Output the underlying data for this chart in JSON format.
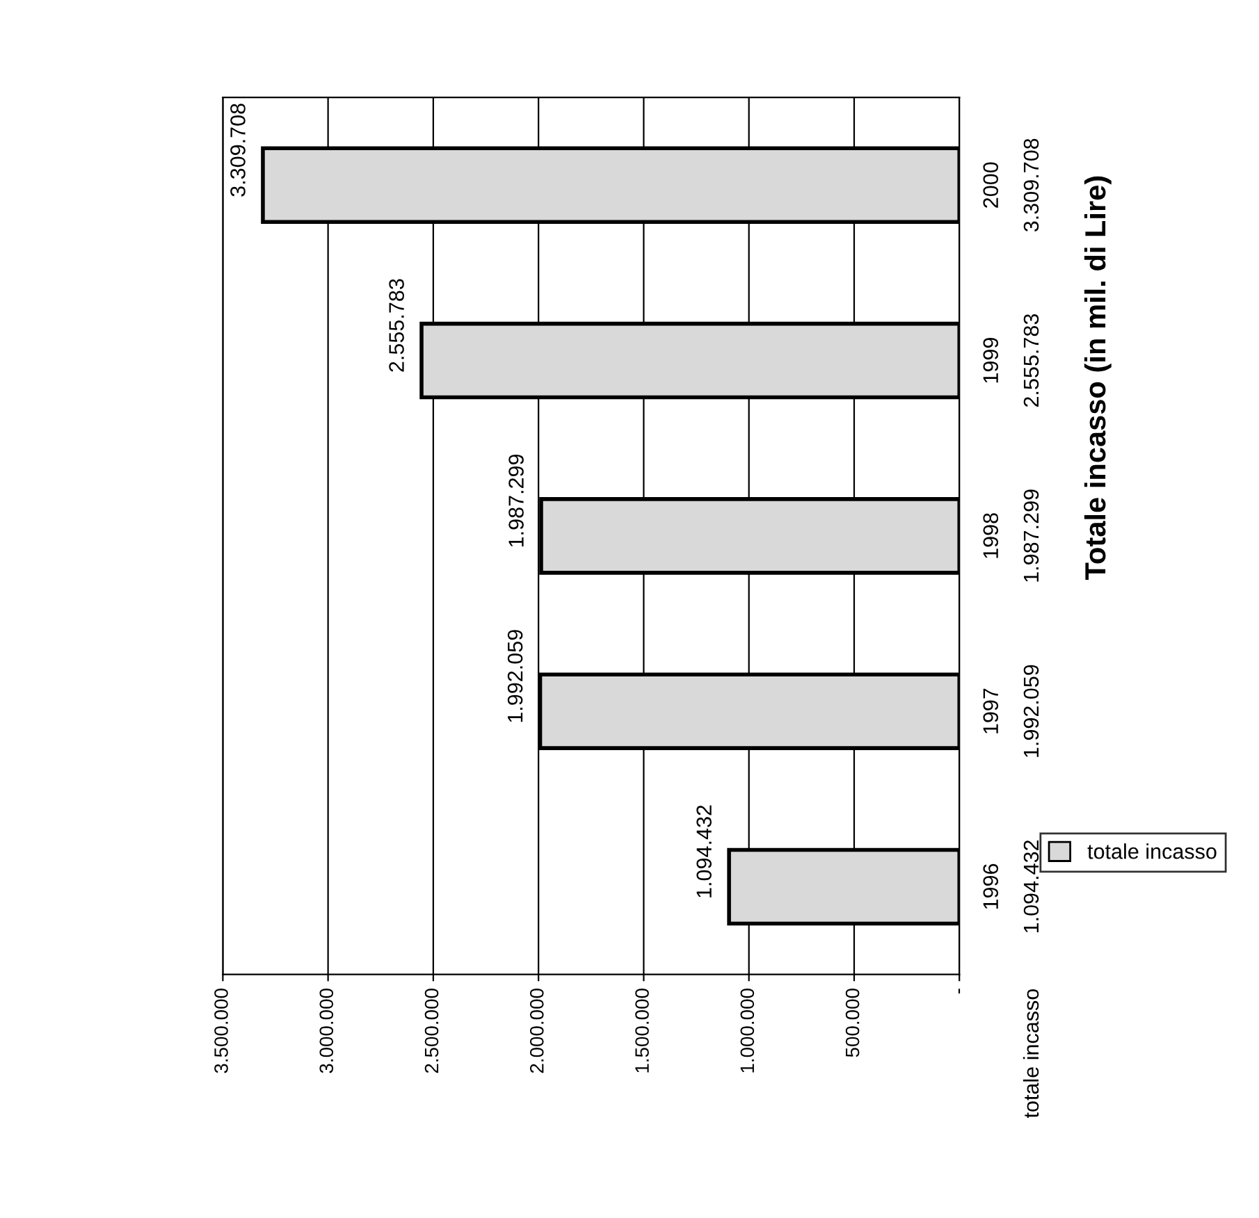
{
  "chart_data": {
    "type": "bar",
    "title": "Totale incasso (in mil. di Lire)",
    "orientation": "horizontal",
    "categories": [
      "2000",
      "1999",
      "1998",
      "1997",
      "1996"
    ],
    "series": [
      {
        "name": "totale incasso",
        "color": "#d9d9d9",
        "values": [
          3309708,
          2555783,
          1987299,
          1992059,
          1094432
        ],
        "value_labels": [
          "3.309.708",
          "2.555.783",
          "1.987.299",
          "1.992.059",
          "1.094.432"
        ]
      }
    ],
    "xlim": [
      3500000,
      0
    ],
    "xticks": [
      {
        "value": 3500000,
        "label": "3.500.000"
      },
      {
        "value": 3000000,
        "label": "3.000.000"
      },
      {
        "value": 2500000,
        "label": "2.500.000"
      },
      {
        "value": 2000000,
        "label": "2.000.000"
      },
      {
        "value": 1500000,
        "label": "1.500.000"
      },
      {
        "value": 1000000,
        "label": "1.000.000"
      },
      {
        "value": 500000,
        "label": "500.000"
      },
      {
        "value": 0,
        "label": "-"
      }
    ],
    "grid": "x",
    "legend": "right"
  }
}
